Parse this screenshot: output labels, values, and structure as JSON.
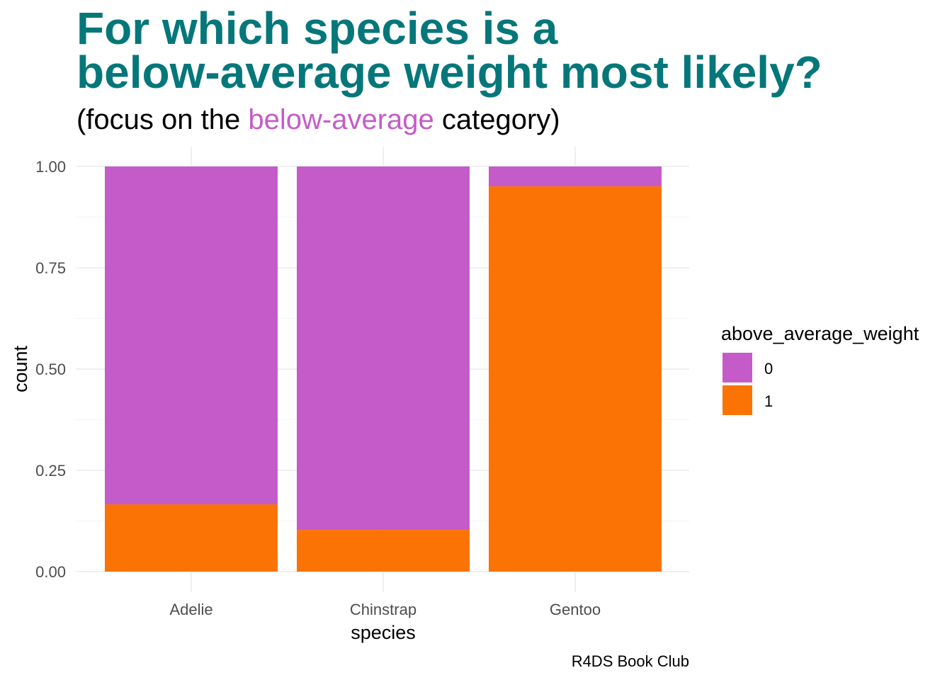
{
  "chart_data": {
    "type": "bar",
    "stacked": true,
    "position": "fill",
    "title_lines": [
      "For which species is a",
      "below-average weight most likely?"
    ],
    "subtitle": {
      "prefix": "(focus on the ",
      "highlight": "below-average",
      "suffix": " category)"
    },
    "xlabel": "species",
    "ylabel": "count",
    "caption": "R4DS Book Club",
    "categories": [
      "Adelie",
      "Chinstrap",
      "Gentoo"
    ],
    "ylim": [
      0,
      1
    ],
    "yticks": [
      0,
      0.25,
      0.5,
      0.75,
      1
    ],
    "ytick_labels": [
      "0.00",
      "0.25",
      "0.50",
      "0.75",
      "1.00"
    ],
    "legend": {
      "title": "above_average_weight",
      "placement": "right"
    },
    "series": [
      {
        "name": "1",
        "color": "#fb7304",
        "values": [
          0.166,
          0.103,
          0.951
        ]
      },
      {
        "name": "0",
        "color": "#c55bc9",
        "values": [
          0.834,
          0.897,
          0.049
        ]
      }
    ],
    "legend_order": [
      "0",
      "1"
    ],
    "colors": {
      "title": "#05777a",
      "highlight": "#c55bc9"
    },
    "grid": true
  }
}
